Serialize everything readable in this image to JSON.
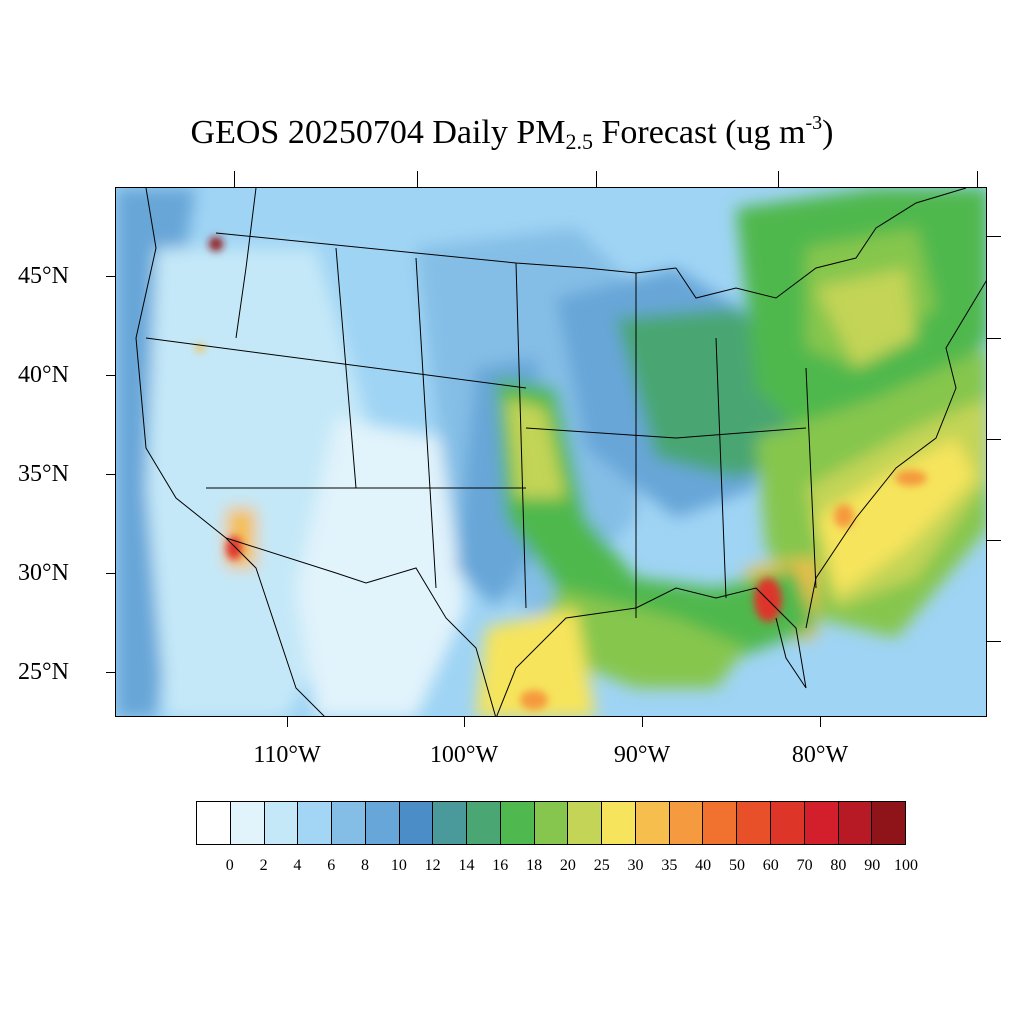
{
  "title": {
    "prefix": "GEOS 20250704 Daily PM",
    "sub": "2.5",
    "middle": " Forecast (ug m",
    "sup": "-3",
    "end": ")"
  },
  "axes": {
    "lat_labels": [
      "45°N",
      "40°N",
      "35°N",
      "30°N",
      "25°N"
    ],
    "lon_labels": [
      "110°W",
      "100°W",
      "90°W",
      "80°W"
    ]
  },
  "colorbar": {
    "levels": [
      "0",
      "2",
      "4",
      "6",
      "8",
      "10",
      "12",
      "14",
      "16",
      "18",
      "20",
      "25",
      "30",
      "35",
      "40",
      "50",
      "60",
      "70",
      "80",
      "90",
      "100"
    ],
    "colors": [
      "#ffffff",
      "#e1f3fb",
      "#c4e8f8",
      "#a2d6f4",
      "#84bee6",
      "#67a6d8",
      "#4b8ec7",
      "#4a9a9c",
      "#4aa672",
      "#4fb84e",
      "#86c64e",
      "#c3d457",
      "#f6e45c",
      "#f6be4c",
      "#f59a3e",
      "#f1712f",
      "#e85029",
      "#de3529",
      "#d21f2b",
      "#b81a25",
      "#8f1419"
    ]
  },
  "map": {
    "background_color": "#9fd4f4",
    "boundary_color": "#000000"
  }
}
